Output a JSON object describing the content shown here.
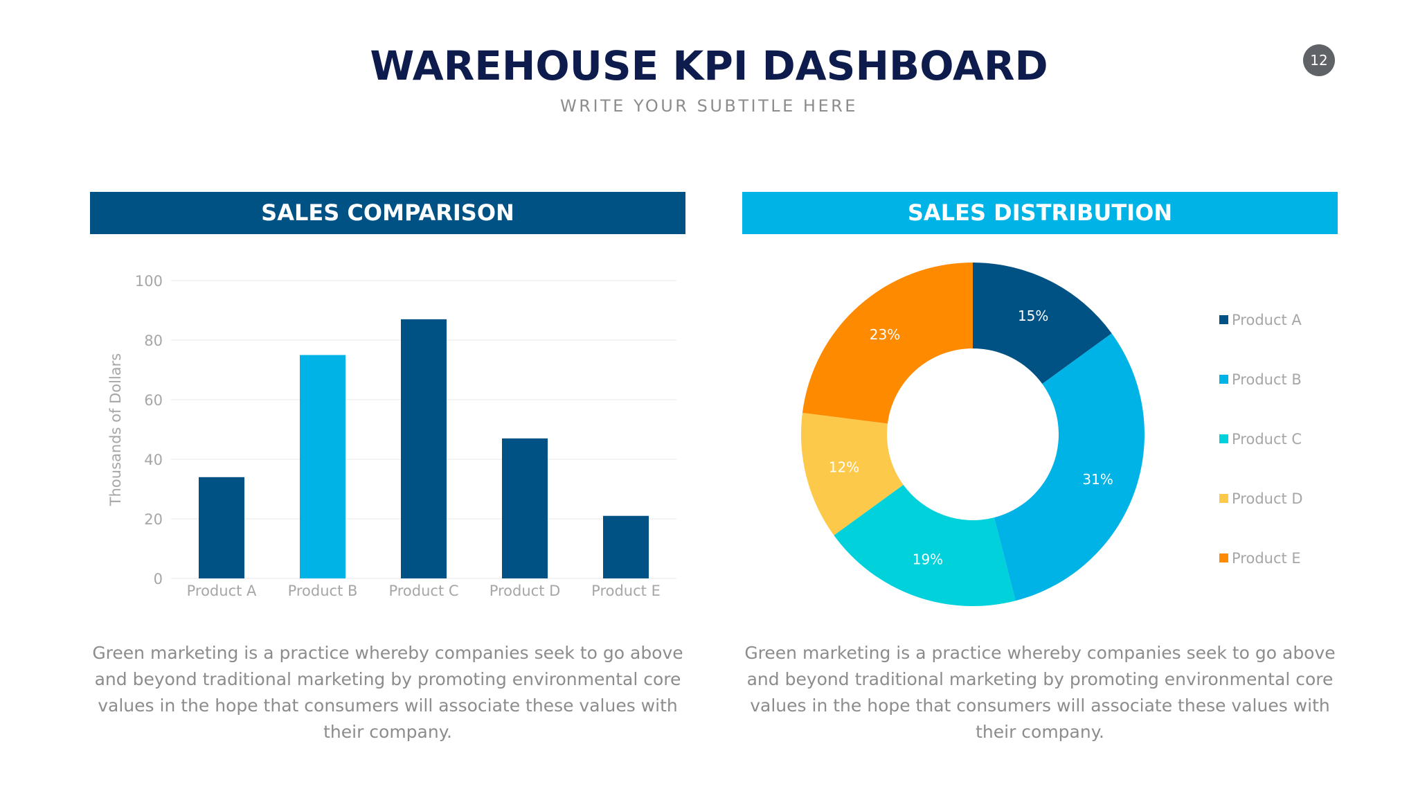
{
  "header": {
    "title": "WAREHOUSE KPI DASHBOARD",
    "subtitle": "WRITE YOUR SUBTITLE HERE",
    "page_number": "12"
  },
  "left_panel": {
    "heading": "SALES COMPARISON",
    "body": "Green marketing is a practice whereby companies seek to go above and beyond traditional marketing by promoting environmental core values in the hope that consumers will associate these values with their company."
  },
  "right_panel": {
    "heading": "SALES DISTRIBUTION",
    "body": "Green marketing is a practice whereby companies seek to go above and beyond traditional marketing by promoting environmental core values in the hope that consumers will associate these values with their company."
  },
  "colors": {
    "navy_header": "#005184",
    "cyan_header": "#00b3e6",
    "title": "#0d1c4c"
  },
  "chart_data": [
    {
      "type": "bar",
      "title": "SALES COMPARISON",
      "categories": [
        "Product A",
        "Product B",
        "Product C",
        "Product D",
        "Product E"
      ],
      "values": [
        34,
        75,
        87,
        47,
        21
      ],
      "colors": [
        "#005184",
        "#00b3e6",
        "#005184",
        "#005184",
        "#005184"
      ],
      "xlabel": "",
      "ylabel": "Thousands of Dollars",
      "ylim": [
        0,
        100
      ],
      "yticks": [
        0,
        20,
        40,
        60,
        80,
        100
      ],
      "grid": true,
      "legend": "none"
    },
    {
      "type": "pie",
      "variant": "donut",
      "title": "SALES DISTRIBUTION",
      "labels": [
        "Product A",
        "Product B",
        "Product C",
        "Product D",
        "Product E"
      ],
      "values": [
        15,
        31,
        19,
        12,
        23
      ],
      "data_labels": [
        "15%",
        "31%",
        "19%",
        "12%",
        "23%"
      ],
      "colors": [
        "#005184",
        "#00b3e6",
        "#00d1db",
        "#fcc94a",
        "#fe8a00"
      ],
      "legend": "right"
    }
  ]
}
